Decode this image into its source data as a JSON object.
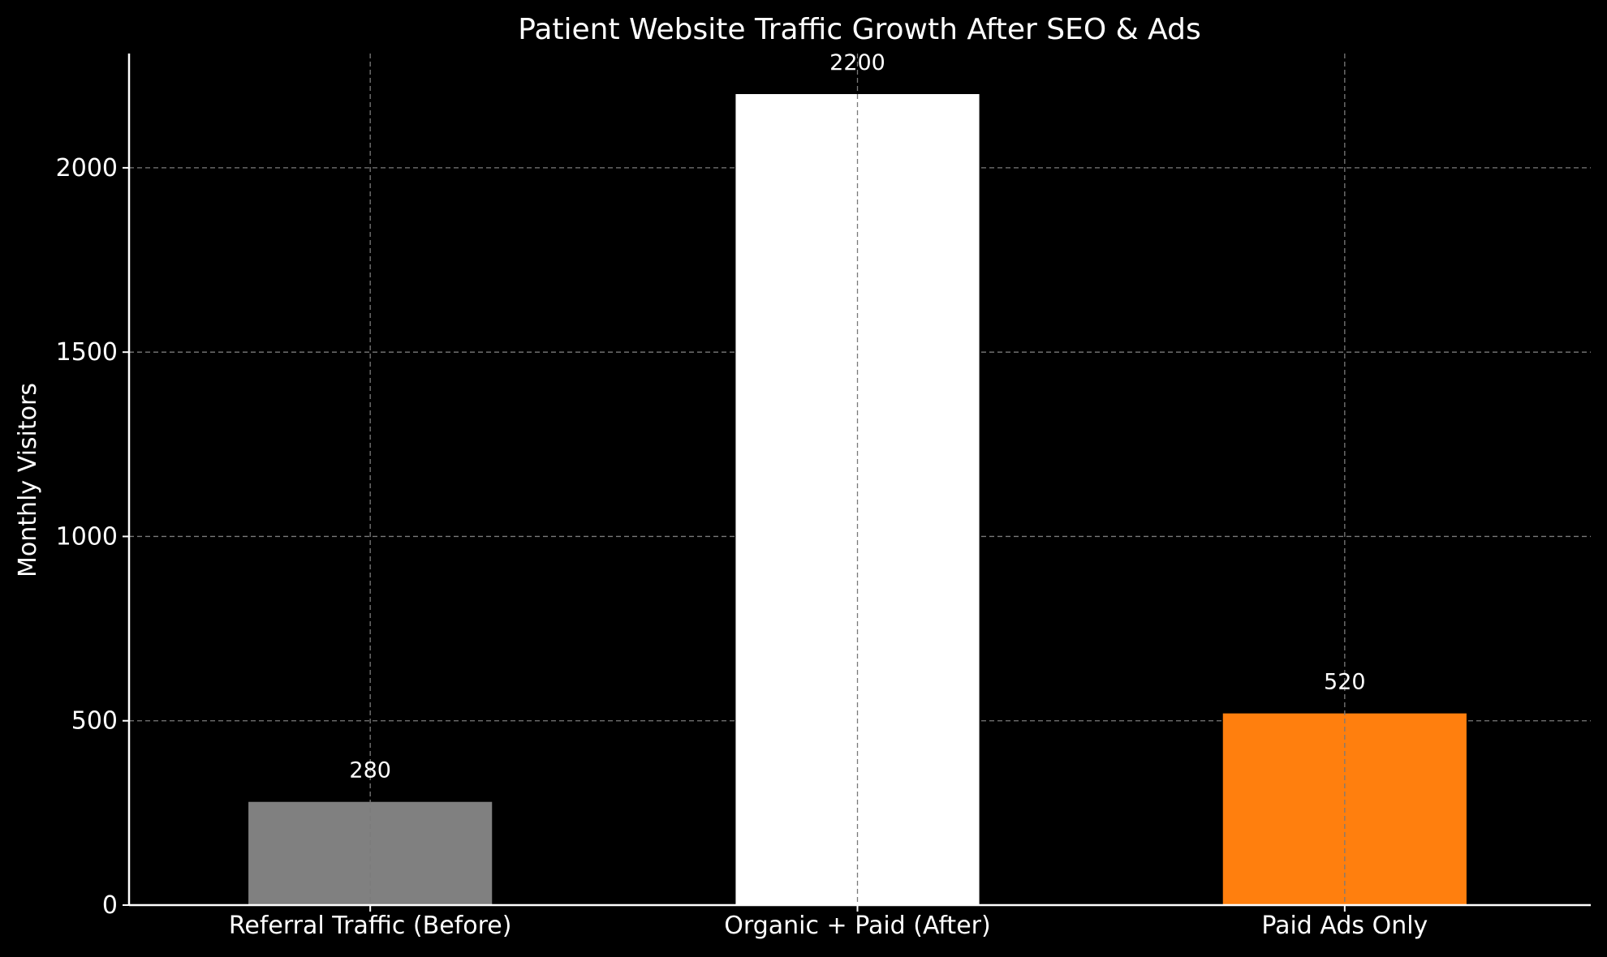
{
  "chart_data": {
    "type": "bar",
    "title": "Patient Website Traffic Growth After SEO & Ads",
    "xlabel": "",
    "ylabel": "Monthly Visitors",
    "categories": [
      "Referral Traffic (Before)",
      "Organic + Paid (After)",
      "Paid Ads Only"
    ],
    "values": [
      280,
      2200,
      520
    ],
    "data_labels": [
      "280",
      "2200",
      "520"
    ],
    "colors": [
      "#808080",
      "#ffffff",
      "#ff7f0e"
    ],
    "ylim": [
      0,
      2310
    ],
    "yticks": [
      0,
      500,
      1000,
      1500,
      2000
    ],
    "ytick_labels": [
      "0",
      "500",
      "1000",
      "1500",
      "2000"
    ],
    "grid": true,
    "background": "#000000",
    "foreground": "#ffffff"
  }
}
